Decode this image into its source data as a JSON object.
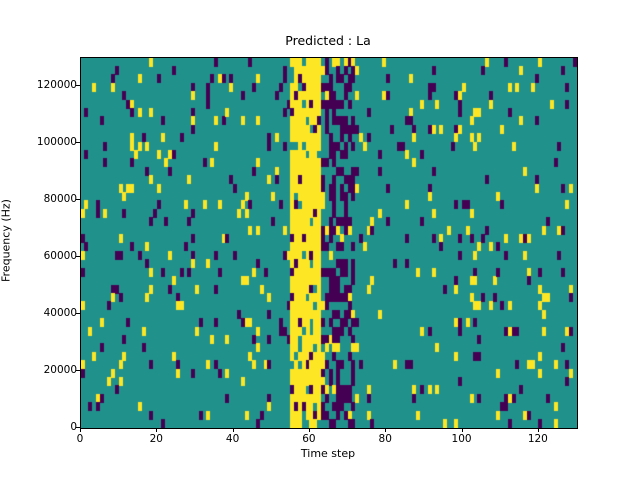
{
  "figure": {
    "title": "Predicted : La",
    "xlabel": "Time step",
    "ylabel": "Frequency (Hz)"
  },
  "chart_data": {
    "type": "heatmap",
    "title": "Predicted : La",
    "xlabel": "Time step",
    "ylabel": "Frequency (Hz)",
    "x_range": [
      0,
      130
    ],
    "y_range": [
      0,
      130000
    ],
    "x_ticks": [
      0,
      20,
      40,
      60,
      80,
      100,
      120
    ],
    "y_ticks": [
      0,
      20000,
      40000,
      60000,
      80000,
      100000,
      120000
    ],
    "grid": {
      "cols": 130,
      "rows": 44
    },
    "legend": "none",
    "colors": {
      "background_teal": "#21918c",
      "active_yellow": "#fde725",
      "inactive_purple": "#440154"
    },
    "features": {
      "description": "Ternary activation map: teal background, dense yellow vertical band near time steps 55-62 spanning all frequencies, dense dark-purple band near time steps 63-71, sparse scattered yellow and purple cells elsewhere.",
      "yellow_band": {
        "x_start": 55,
        "x_end": 62,
        "yellow_density": 0.82,
        "purple_density": 0.06
      },
      "purple_band": {
        "x_start": 63,
        "x_end": 71,
        "purple_density": 0.45,
        "yellow_density": 0.05
      },
      "noise": {
        "yellow_density": 0.045,
        "purple_density": 0.045
      },
      "seed": 42
    }
  }
}
